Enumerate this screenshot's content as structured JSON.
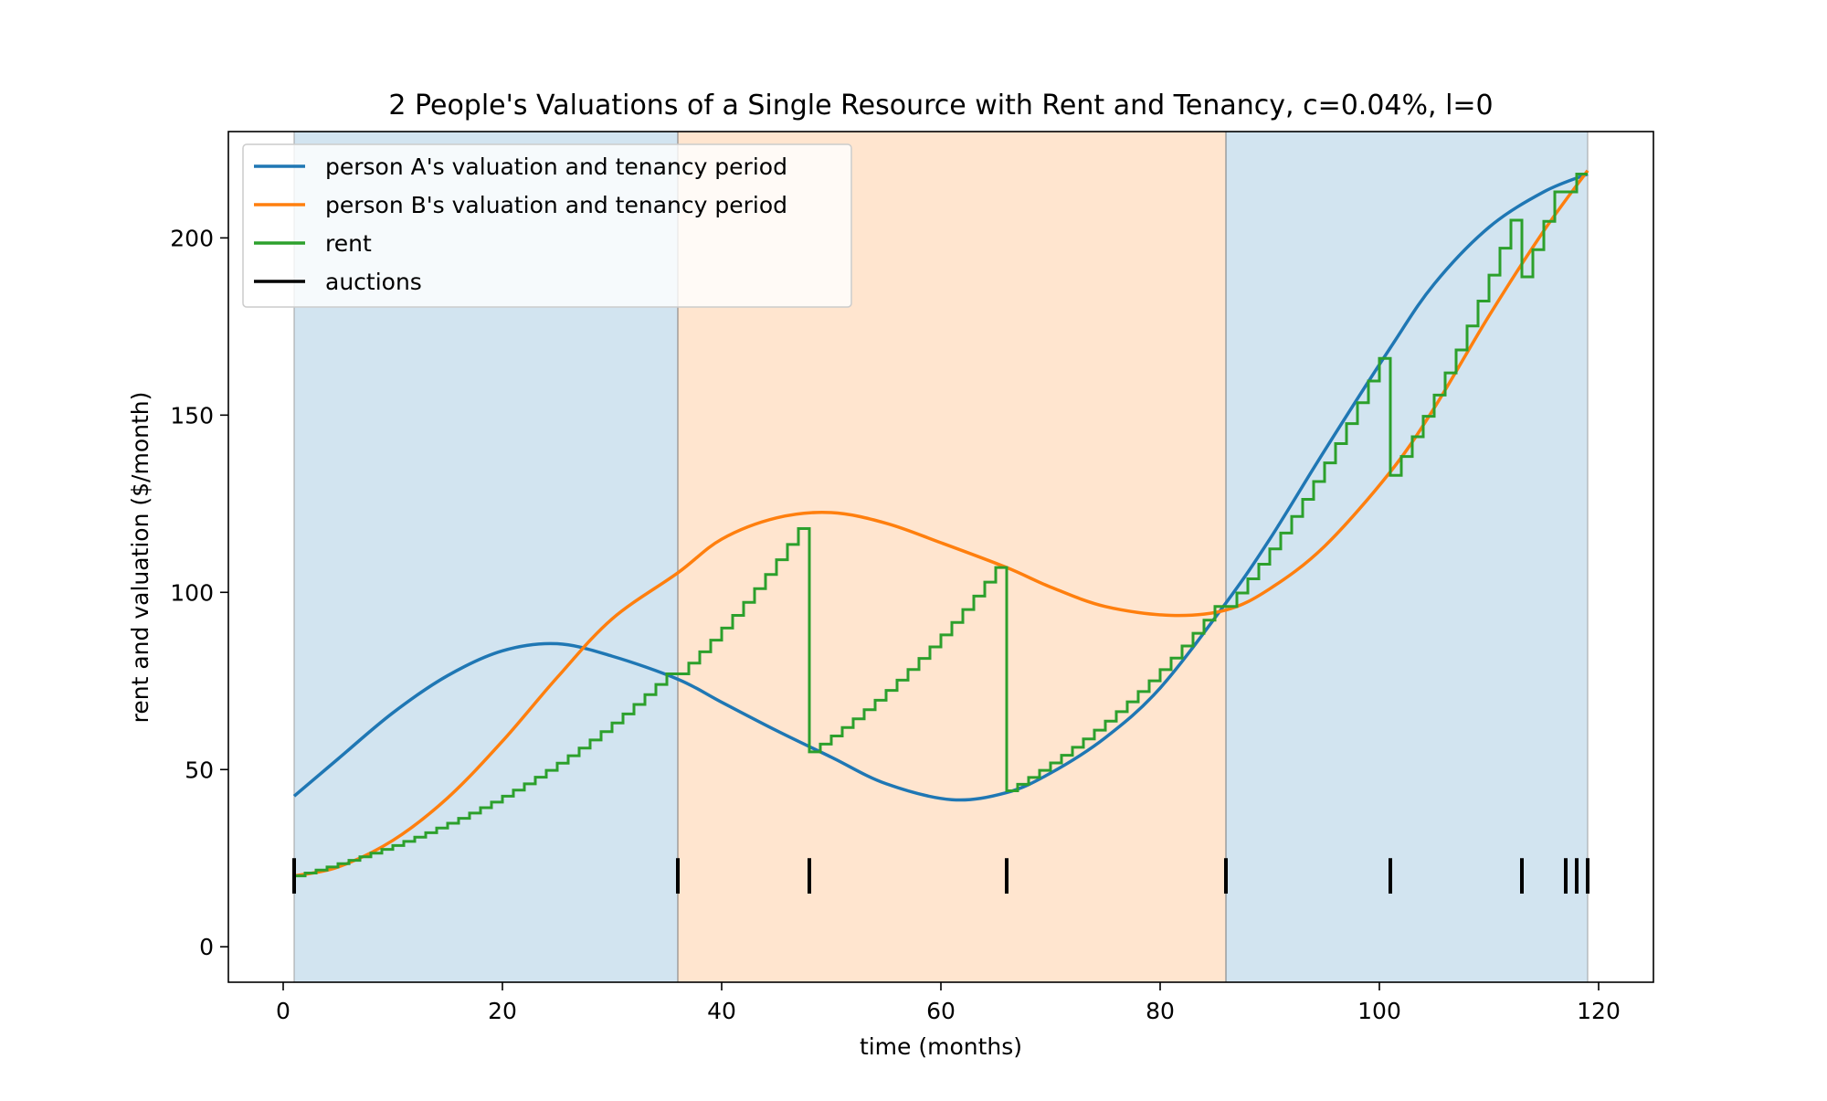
{
  "chart_data": {
    "type": "line",
    "title": "2 People's Valuations of a Single Resource with Rent and Tenancy, c=0.04%, l=0",
    "xlabel": "time (months)",
    "ylabel": "rent and valuation ($/month)",
    "xlim": [
      -5,
      125
    ],
    "ylim": [
      -10,
      230
    ],
    "xticks": [
      0,
      20,
      40,
      60,
      80,
      100,
      120
    ],
    "yticks": [
      0,
      50,
      100,
      150,
      200
    ],
    "grid": false,
    "legend_placement": "top-left",
    "legend": [
      {
        "label": "person A's valuation and tenancy period",
        "color": "#1f77b4"
      },
      {
        "label": "person B's valuation and tenancy period",
        "color": "#ff7f0e"
      },
      {
        "label": "rent",
        "color": "#2ca02c"
      },
      {
        "label": "auctions",
        "color": "#000000"
      }
    ],
    "tenancy_periods": [
      {
        "person": "A",
        "start": 1,
        "end": 36,
        "color": "#1f77b4"
      },
      {
        "person": "B",
        "start": 36,
        "end": 86,
        "color": "#ff7f0e"
      },
      {
        "person": "A",
        "start": 86,
        "end": 119,
        "color": "#1f77b4"
      }
    ],
    "auctions": [
      1,
      36,
      48,
      66,
      86,
      101,
      113,
      117,
      118,
      119
    ],
    "auction_mark_range": [
      15,
      25
    ],
    "series": [
      {
        "name": "person A's valuation and tenancy period",
        "color": "#1f77b4",
        "x": [
          1,
          5,
          10,
          15,
          20,
          25,
          30,
          36,
          40,
          45,
          50,
          55,
          61,
          66,
          70,
          75,
          80,
          86,
          90,
          95,
          101,
          105,
          110,
          115,
          119
        ],
        "y": [
          42.5,
          53,
          66,
          76.5,
          83.5,
          85.5,
          82,
          75.5,
          69,
          61,
          53.5,
          46,
          41.5,
          43.5,
          49,
          59,
          73,
          97,
          115,
          140,
          169,
          187,
          203,
          213,
          218
        ]
      },
      {
        "name": "person B's valuation and tenancy period",
        "color": "#ff7f0e",
        "x": [
          1,
          5,
          10,
          15,
          20,
          25,
          30,
          36,
          40,
          45,
          50,
          55,
          60,
          66,
          70,
          75,
          81,
          86,
          90,
          95,
          101,
          105,
          110,
          115,
          119
        ],
        "y": [
          20,
          22.5,
          30,
          42,
          58,
          76,
          92.5,
          105.5,
          115,
          121,
          122.5,
          119.5,
          114,
          107,
          101.5,
          96,
          93.5,
          95,
          101,
          113,
          134,
          152,
          178,
          202,
          219
        ]
      },
      {
        "name": "rent",
        "color": "#2ca02c",
        "step": "post",
        "segments": [
          {
            "start": 1,
            "end": 36,
            "y_start": 20,
            "y_end": 77
          },
          {
            "start": 36,
            "end": 48,
            "y_start": 77,
            "y_end": 118
          },
          {
            "start": 48,
            "end": 66,
            "y_start": 55,
            "y_end": 107
          },
          {
            "start": 66,
            "end": 86,
            "y_start": 44,
            "y_end": 96
          },
          {
            "start": 86,
            "end": 101,
            "y_start": 96,
            "y_end": 166
          },
          {
            "start": 101,
            "end": 113,
            "y_start": 133,
            "y_end": 205
          },
          {
            "start": 113,
            "end": 117,
            "y_start": 189,
            "y_end": 213
          },
          {
            "start": 117,
            "end": 118,
            "y_start": 209,
            "y_end": 213
          },
          {
            "start": 118,
            "end": 119,
            "y_start": 213,
            "y_end": 218
          }
        ]
      }
    ]
  }
}
